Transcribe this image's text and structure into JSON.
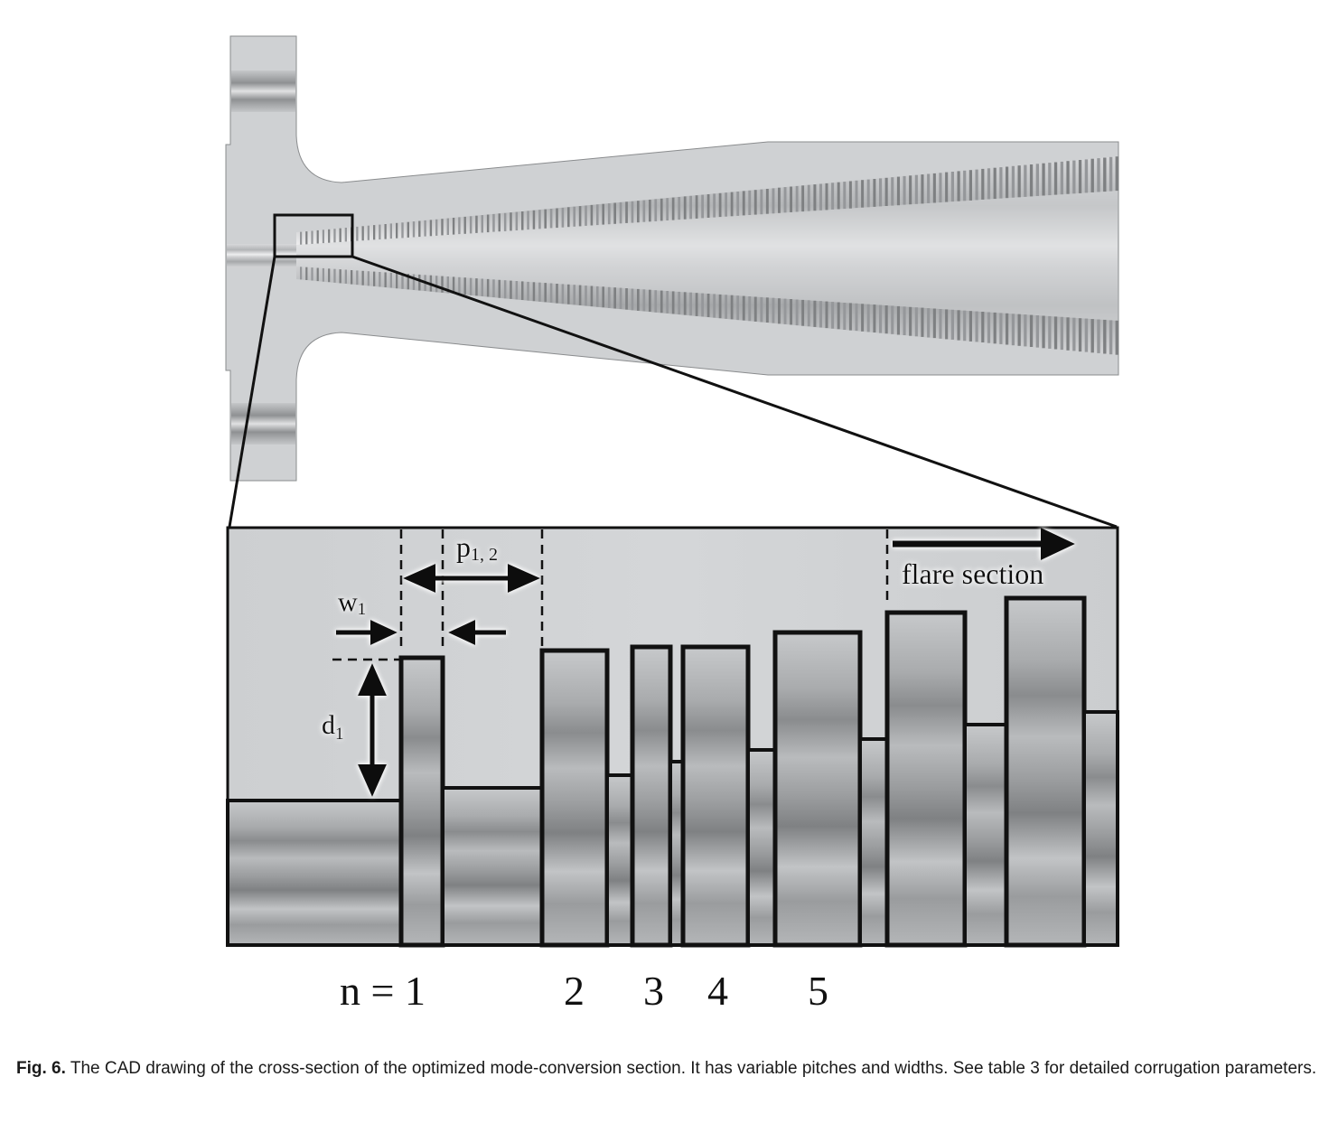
{
  "figure": {
    "labels": {
      "w": "w",
      "w_sub": "1",
      "p": "p",
      "p_sub": "1, 2",
      "d": "d",
      "d_sub": "1",
      "flare": "flare section",
      "n_eq": "n = 1",
      "n2": "2",
      "n3": "3",
      "n4": "4",
      "n5": "5"
    },
    "colors": {
      "body_gray": "#cfd1d3",
      "metal_dark": "#8c8e90",
      "metal_light": "#c9cbcd",
      "outline": "#111111"
    }
  },
  "caption": {
    "label": "Fig. 6.",
    "text": " The CAD drawing of the cross-section of the optimized mode-conversion section. It has variable pitches and widths. See table 3 for detailed corrugation parameters."
  }
}
